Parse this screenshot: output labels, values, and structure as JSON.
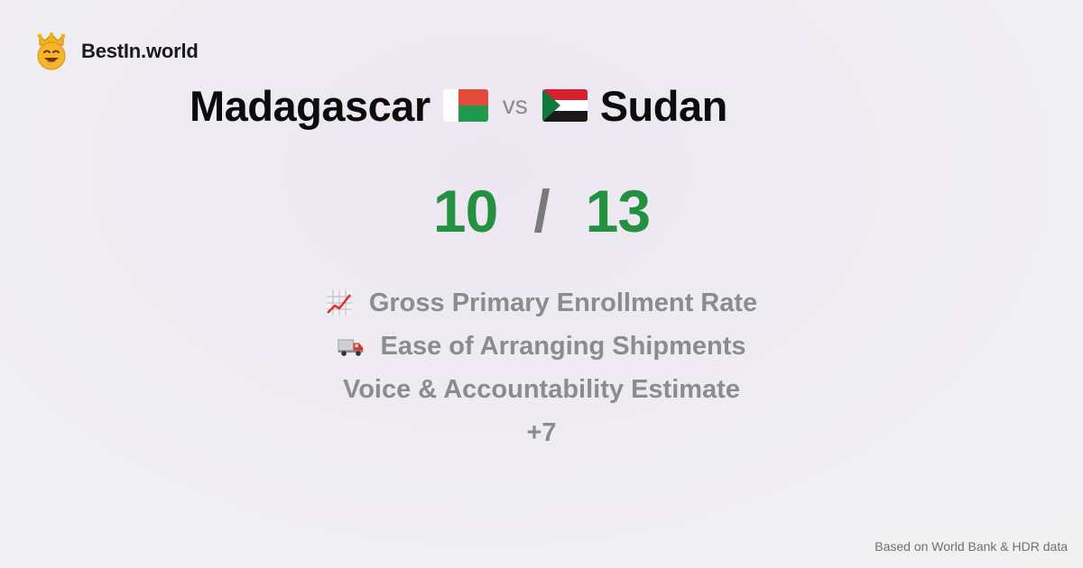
{
  "brand": {
    "name": "BestIn.world",
    "icon": "crown-smiley-icon"
  },
  "comparison": {
    "country_a": "Madagascar",
    "country_b": "Sudan",
    "separator": "vs",
    "flag_a": "madagascar-flag-icon",
    "flag_b": "sudan-flag-icon"
  },
  "score": {
    "a": "10",
    "separator": "/",
    "b": "13"
  },
  "metrics": [
    {
      "icon": "chart-increasing-icon",
      "label": "Gross Primary Enrollment Rate"
    },
    {
      "icon": "delivery-truck-icon",
      "label": "Ease of Arranging Shipments"
    },
    {
      "icon": "",
      "label": "Voice & Accountability Estimate"
    }
  ],
  "more_count": "+7",
  "footer": {
    "source": "Based on World Bank & HDR data"
  },
  "colors": {
    "score": "#23913f",
    "muted": "#8c8c8c"
  }
}
